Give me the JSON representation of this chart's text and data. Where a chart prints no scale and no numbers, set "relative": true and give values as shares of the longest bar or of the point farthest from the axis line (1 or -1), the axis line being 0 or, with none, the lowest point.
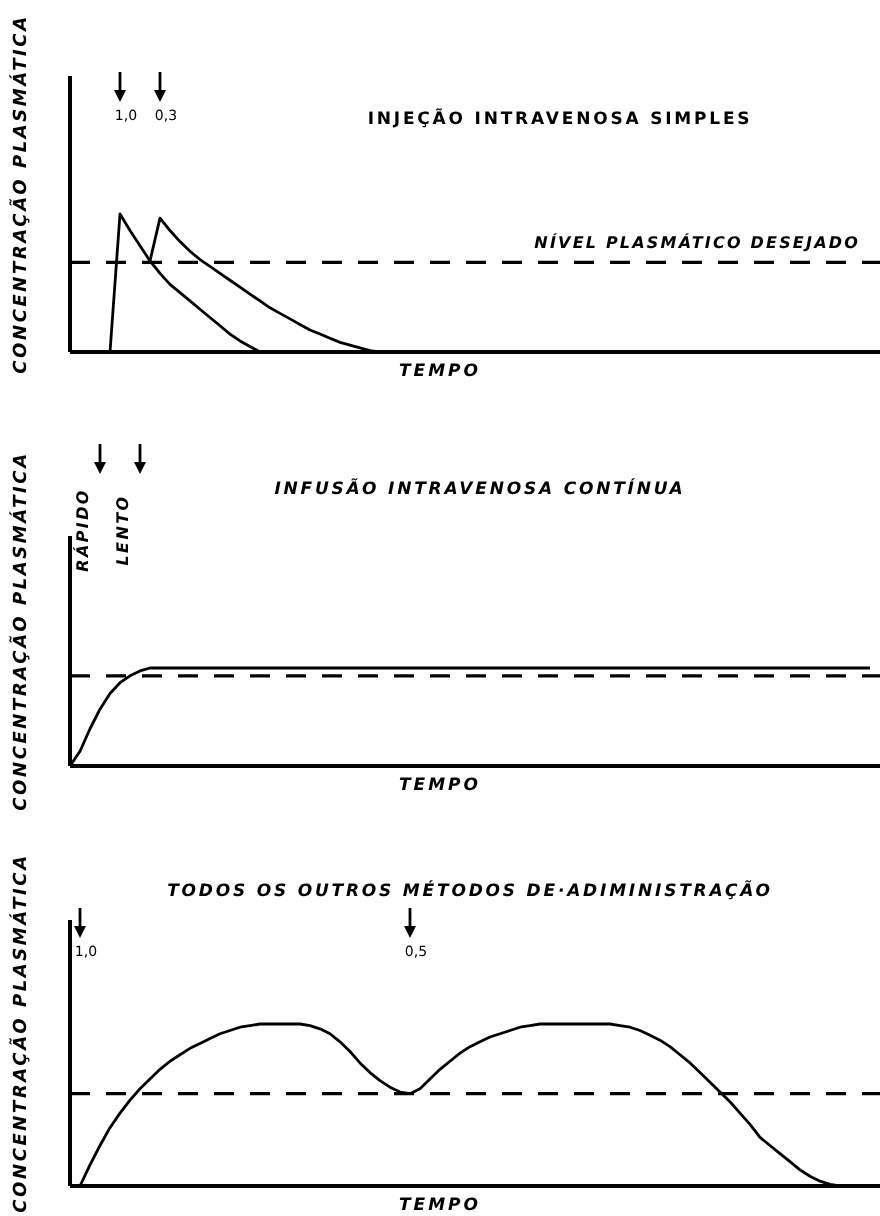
{
  "chart_data": [
    {
      "type": "line",
      "title": "INJEÇÃO INTRAVENOSA SIMPLES",
      "xlabel": "TEMPO",
      "ylabel": "CONCENTRAÇÃO PLASMÁTICA",
      "relative": true,
      "categories": [
        null,
        null,
        null,
        null,
        null,
        null,
        null,
        null,
        null,
        null,
        null,
        null,
        null,
        null,
        null,
        null,
        null,
        null,
        null,
        null,
        null,
        null,
        null,
        null,
        null,
        null,
        null,
        null,
        null,
        null,
        null,
        null,
        null,
        null,
        null,
        null,
        null,
        null,
        null,
        null,
        null,
        null,
        null,
        null,
        null,
        null,
        null,
        null,
        null,
        null,
        null,
        null,
        null,
        null,
        null,
        null,
        null,
        null,
        null,
        null,
        null,
        null,
        null,
        null,
        null,
        null,
        null,
        null,
        null,
        null,
        null,
        null,
        null,
        null,
        null,
        null,
        null,
        null,
        null,
        null,
        null
      ],
      "series": [
        {
          "color": "#000000",
          "values": [
            null,
            null,
            null,
            null,
            0,
            1,
            0.88,
            0.77,
            0.66,
            0.57,
            0.49,
            0.43,
            0.37,
            0.31,
            0.25,
            0.19,
            0.13,
            0.08,
            0.04,
            0,
            null,
            null,
            null,
            null,
            null,
            null,
            null,
            null,
            null,
            null,
            null,
            null,
            null,
            null,
            null,
            null,
            null,
            null,
            null,
            null,
            null,
            null,
            null,
            null,
            null,
            null,
            null,
            null,
            null,
            null,
            null,
            null,
            null,
            null,
            null,
            null,
            null,
            null,
            null,
            null,
            null,
            null,
            null,
            null,
            null,
            null,
            null,
            null,
            null,
            null,
            null,
            null,
            null,
            null,
            null,
            null,
            null,
            null,
            null,
            null,
            null
          ]
        },
        {
          "color": "#000000",
          "values": [
            null,
            null,
            null,
            null,
            null,
            null,
            null,
            null,
            0.66,
            0.97,
            0.88,
            0.8,
            0.73,
            0.67,
            0.62,
            0.57,
            0.52,
            0.47,
            0.42,
            0.37,
            0.32,
            0.28,
            0.24,
            0.2,
            0.16,
            0.13,
            0.1,
            0.07,
            0.05,
            0.03,
            0.01,
            0,
            null,
            null,
            null,
            null,
            null,
            null,
            null,
            null,
            null,
            null,
            null,
            null,
            null,
            null,
            null,
            null,
            null,
            null,
            null,
            null,
            null,
            null,
            null,
            null,
            null,
            null,
            null,
            null,
            null,
            null,
            null,
            null,
            null,
            null,
            null,
            null,
            null,
            null,
            null,
            null,
            null,
            null,
            null,
            null,
            null,
            null,
            null,
            null,
            null
          ]
        }
      ],
      "ref_lines": [
        {
          "axis": "y",
          "value": 0.65,
          "label": "NÍVEL PLASMÁTICO DESEJADO",
          "color": "#000000",
          "line_style": "dashed"
        }
      ],
      "annotations": [
        "1,0",
        "0,3"
      ]
    },
    {
      "type": "line",
      "title": "INFUSÃO INTRAVENOSA CONTÍNUA",
      "xlabel": "TEMPO",
      "ylabel": "CONCENTRAÇÃO PLASMÁTICA",
      "relative": true,
      "categories": [
        null,
        null,
        null,
        null,
        null,
        null,
        null,
        null,
        null,
        null,
        null,
        null,
        null,
        null,
        null,
        null,
        null,
        null,
        null,
        null,
        null,
        null,
        null,
        null,
        null,
        null,
        null,
        null,
        null,
        null,
        null,
        null,
        null,
        null,
        null,
        null,
        null,
        null,
        null,
        null,
        null,
        null,
        null,
        null,
        null,
        null,
        null,
        null,
        null,
        null,
        null,
        null,
        null,
        null,
        null,
        null,
        null,
        null,
        null,
        null,
        null,
        null,
        null,
        null,
        null,
        null,
        null,
        null,
        null,
        null,
        null,
        null,
        null,
        null,
        null,
        null,
        null,
        null,
        null,
        null,
        null
      ],
      "series": [
        {
          "color": "#000000",
          "values": [
            0,
            0.15,
            0.38,
            0.58,
            0.74,
            0.85,
            0.92,
            0.97,
            1,
            1,
            1,
            1,
            1,
            1,
            1,
            1,
            1,
            1,
            1,
            1,
            1,
            1,
            1,
            1,
            1,
            1,
            1,
            1,
            1,
            1,
            1,
            1,
            1,
            1,
            1,
            1,
            1,
            1,
            1,
            1,
            1,
            1,
            1,
            1,
            1,
            1,
            1,
            1,
            1,
            1,
            1,
            1,
            1,
            1,
            1,
            1,
            1,
            1,
            1,
            1,
            1,
            1,
            1,
            1,
            1,
            1,
            1,
            1,
            1,
            1,
            1,
            1,
            1,
            1,
            1,
            1,
            1,
            1,
            1,
            1,
            1
          ]
        }
      ],
      "ref_lines": [
        {
          "axis": "y",
          "value": 0.92,
          "color": "#000000",
          "line_style": "dashed"
        }
      ],
      "annotations": [
        "RÁPIDO",
        "LENTO"
      ]
    },
    {
      "type": "line",
      "title": "TODOS OS OUTROS MÉTODOS DE·ADIMINISTRAÇÃO",
      "xlabel": "TEMPO",
      "ylabel": "CONCENTRAÇÃO PLASMÁTICA",
      "relative": true,
      "categories": [
        null,
        null,
        null,
        null,
        null,
        null,
        null,
        null,
        null,
        null,
        null,
        null,
        null,
        null,
        null,
        null,
        null,
        null,
        null,
        null,
        null,
        null,
        null,
        null,
        null,
        null,
        null,
        null,
        null,
        null,
        null,
        null,
        null,
        null,
        null,
        null,
        null,
        null,
        null,
        null,
        null,
        null,
        null,
        null,
        null,
        null,
        null,
        null,
        null,
        null,
        null,
        null,
        null,
        null,
        null,
        null,
        null,
        null,
        null,
        null,
        null,
        null,
        null,
        null,
        null,
        null,
        null,
        null,
        null,
        null,
        null,
        null,
        null,
        null,
        null,
        null,
        null,
        null,
        null,
        null,
        null
      ],
      "series": [
        {
          "color": "#000000",
          "values": [
            null,
            0,
            0.13,
            0.25,
            0.36,
            0.45,
            0.53,
            0.6,
            0.66,
            0.72,
            0.77,
            0.81,
            0.85,
            0.88,
            0.91,
            0.94,
            0.96,
            0.98,
            0.99,
            1,
            1,
            1,
            1,
            1,
            0.99,
            0.97,
            0.94,
            0.89,
            0.83,
            0.76,
            0.7,
            0.65,
            0.61,
            0.58,
            0.57,
            0.6,
            0.66,
            0.72,
            0.77,
            0.82,
            0.86,
            0.89,
            0.92,
            0.94,
            0.96,
            0.98,
            0.99,
            1,
            1,
            1,
            1,
            1,
            1,
            1,
            1,
            0.99,
            0.98,
            0.96,
            0.93,
            0.9,
            0.86,
            0.81,
            0.76,
            0.7,
            0.64,
            0.58,
            0.52,
            0.45,
            0.38,
            0.3,
            0.25,
            0.2,
            0.15,
            0.1,
            0.06,
            0.03,
            0.01,
            0,
            null,
            null,
            null
          ]
        }
      ],
      "ref_lines": [
        {
          "axis": "y",
          "value": 0.57,
          "color": "#000000",
          "line_style": "dashed"
        }
      ],
      "annotations": [
        "1,0",
        "0,5"
      ]
    }
  ]
}
